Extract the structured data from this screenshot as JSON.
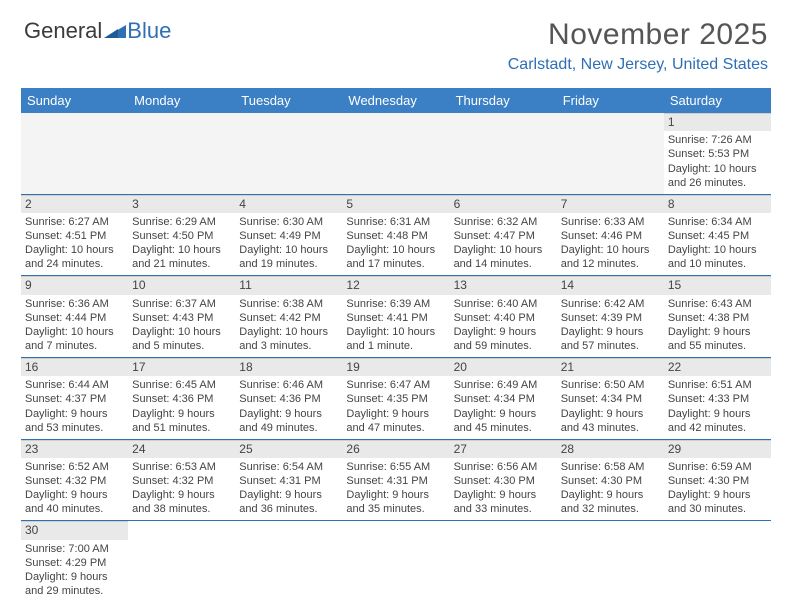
{
  "brand": {
    "part1": "General",
    "part2": "Blue"
  },
  "title": "November 2025",
  "location": "Carlstadt, New Jersey, United States",
  "colors": {
    "header_bg": "#3b7fc4",
    "header_text": "#ffffff",
    "accent": "#2f6fb4",
    "daynum_bg": "#e9e9e9",
    "body_text": "#444444",
    "page_bg": "#ffffff"
  },
  "typography": {
    "title_fontsize": 30,
    "location_fontsize": 16,
    "day_header_fontsize": 13,
    "cell_fontsize": 11
  },
  "weekdays": [
    "Sunday",
    "Monday",
    "Tuesday",
    "Wednesday",
    "Thursday",
    "Friday",
    "Saturday"
  ],
  "calendar": {
    "type": "table",
    "columns": 7,
    "rows": [
      [
        {
          "empty": true
        },
        {
          "empty": true
        },
        {
          "empty": true
        },
        {
          "empty": true
        },
        {
          "empty": true
        },
        {
          "empty": true
        },
        {
          "day": "1",
          "sunrise": "Sunrise: 7:26 AM",
          "sunset": "Sunset: 5:53 PM",
          "daylight1": "Daylight: 10 hours",
          "daylight2": "and 26 minutes."
        }
      ],
      [
        {
          "day": "2",
          "sunrise": "Sunrise: 6:27 AM",
          "sunset": "Sunset: 4:51 PM",
          "daylight1": "Daylight: 10 hours",
          "daylight2": "and 24 minutes."
        },
        {
          "day": "3",
          "sunrise": "Sunrise: 6:29 AM",
          "sunset": "Sunset: 4:50 PM",
          "daylight1": "Daylight: 10 hours",
          "daylight2": "and 21 minutes."
        },
        {
          "day": "4",
          "sunrise": "Sunrise: 6:30 AM",
          "sunset": "Sunset: 4:49 PM",
          "daylight1": "Daylight: 10 hours",
          "daylight2": "and 19 minutes."
        },
        {
          "day": "5",
          "sunrise": "Sunrise: 6:31 AM",
          "sunset": "Sunset: 4:48 PM",
          "daylight1": "Daylight: 10 hours",
          "daylight2": "and 17 minutes."
        },
        {
          "day": "6",
          "sunrise": "Sunrise: 6:32 AM",
          "sunset": "Sunset: 4:47 PM",
          "daylight1": "Daylight: 10 hours",
          "daylight2": "and 14 minutes."
        },
        {
          "day": "7",
          "sunrise": "Sunrise: 6:33 AM",
          "sunset": "Sunset: 4:46 PM",
          "daylight1": "Daylight: 10 hours",
          "daylight2": "and 12 minutes."
        },
        {
          "day": "8",
          "sunrise": "Sunrise: 6:34 AM",
          "sunset": "Sunset: 4:45 PM",
          "daylight1": "Daylight: 10 hours",
          "daylight2": "and 10 minutes."
        }
      ],
      [
        {
          "day": "9",
          "sunrise": "Sunrise: 6:36 AM",
          "sunset": "Sunset: 4:44 PM",
          "daylight1": "Daylight: 10 hours",
          "daylight2": "and 7 minutes."
        },
        {
          "day": "10",
          "sunrise": "Sunrise: 6:37 AM",
          "sunset": "Sunset: 4:43 PM",
          "daylight1": "Daylight: 10 hours",
          "daylight2": "and 5 minutes."
        },
        {
          "day": "11",
          "sunrise": "Sunrise: 6:38 AM",
          "sunset": "Sunset: 4:42 PM",
          "daylight1": "Daylight: 10 hours",
          "daylight2": "and 3 minutes."
        },
        {
          "day": "12",
          "sunrise": "Sunrise: 6:39 AM",
          "sunset": "Sunset: 4:41 PM",
          "daylight1": "Daylight: 10 hours",
          "daylight2": "and 1 minute."
        },
        {
          "day": "13",
          "sunrise": "Sunrise: 6:40 AM",
          "sunset": "Sunset: 4:40 PM",
          "daylight1": "Daylight: 9 hours",
          "daylight2": "and 59 minutes."
        },
        {
          "day": "14",
          "sunrise": "Sunrise: 6:42 AM",
          "sunset": "Sunset: 4:39 PM",
          "daylight1": "Daylight: 9 hours",
          "daylight2": "and 57 minutes."
        },
        {
          "day": "15",
          "sunrise": "Sunrise: 6:43 AM",
          "sunset": "Sunset: 4:38 PM",
          "daylight1": "Daylight: 9 hours",
          "daylight2": "and 55 minutes."
        }
      ],
      [
        {
          "day": "16",
          "sunrise": "Sunrise: 6:44 AM",
          "sunset": "Sunset: 4:37 PM",
          "daylight1": "Daylight: 9 hours",
          "daylight2": "and 53 minutes."
        },
        {
          "day": "17",
          "sunrise": "Sunrise: 6:45 AM",
          "sunset": "Sunset: 4:36 PM",
          "daylight1": "Daylight: 9 hours",
          "daylight2": "and 51 minutes."
        },
        {
          "day": "18",
          "sunrise": "Sunrise: 6:46 AM",
          "sunset": "Sunset: 4:36 PM",
          "daylight1": "Daylight: 9 hours",
          "daylight2": "and 49 minutes."
        },
        {
          "day": "19",
          "sunrise": "Sunrise: 6:47 AM",
          "sunset": "Sunset: 4:35 PM",
          "daylight1": "Daylight: 9 hours",
          "daylight2": "and 47 minutes."
        },
        {
          "day": "20",
          "sunrise": "Sunrise: 6:49 AM",
          "sunset": "Sunset: 4:34 PM",
          "daylight1": "Daylight: 9 hours",
          "daylight2": "and 45 minutes."
        },
        {
          "day": "21",
          "sunrise": "Sunrise: 6:50 AM",
          "sunset": "Sunset: 4:34 PM",
          "daylight1": "Daylight: 9 hours",
          "daylight2": "and 43 minutes."
        },
        {
          "day": "22",
          "sunrise": "Sunrise: 6:51 AM",
          "sunset": "Sunset: 4:33 PM",
          "daylight1": "Daylight: 9 hours",
          "daylight2": "and 42 minutes."
        }
      ],
      [
        {
          "day": "23",
          "sunrise": "Sunrise: 6:52 AM",
          "sunset": "Sunset: 4:32 PM",
          "daylight1": "Daylight: 9 hours",
          "daylight2": "and 40 minutes."
        },
        {
          "day": "24",
          "sunrise": "Sunrise: 6:53 AM",
          "sunset": "Sunset: 4:32 PM",
          "daylight1": "Daylight: 9 hours",
          "daylight2": "and 38 minutes."
        },
        {
          "day": "25",
          "sunrise": "Sunrise: 6:54 AM",
          "sunset": "Sunset: 4:31 PM",
          "daylight1": "Daylight: 9 hours",
          "daylight2": "and 36 minutes."
        },
        {
          "day": "26",
          "sunrise": "Sunrise: 6:55 AM",
          "sunset": "Sunset: 4:31 PM",
          "daylight1": "Daylight: 9 hours",
          "daylight2": "and 35 minutes."
        },
        {
          "day": "27",
          "sunrise": "Sunrise: 6:56 AM",
          "sunset": "Sunset: 4:30 PM",
          "daylight1": "Daylight: 9 hours",
          "daylight2": "and 33 minutes."
        },
        {
          "day": "28",
          "sunrise": "Sunrise: 6:58 AM",
          "sunset": "Sunset: 4:30 PM",
          "daylight1": "Daylight: 9 hours",
          "daylight2": "and 32 minutes."
        },
        {
          "day": "29",
          "sunrise": "Sunrise: 6:59 AM",
          "sunset": "Sunset: 4:30 PM",
          "daylight1": "Daylight: 9 hours",
          "daylight2": "and 30 minutes."
        }
      ],
      [
        {
          "day": "30",
          "sunrise": "Sunrise: 7:00 AM",
          "sunset": "Sunset: 4:29 PM",
          "daylight1": "Daylight: 9 hours",
          "daylight2": "and 29 minutes."
        },
        {
          "empty": true
        },
        {
          "empty": true
        },
        {
          "empty": true
        },
        {
          "empty": true
        },
        {
          "empty": true
        },
        {
          "empty": true
        }
      ]
    ]
  }
}
